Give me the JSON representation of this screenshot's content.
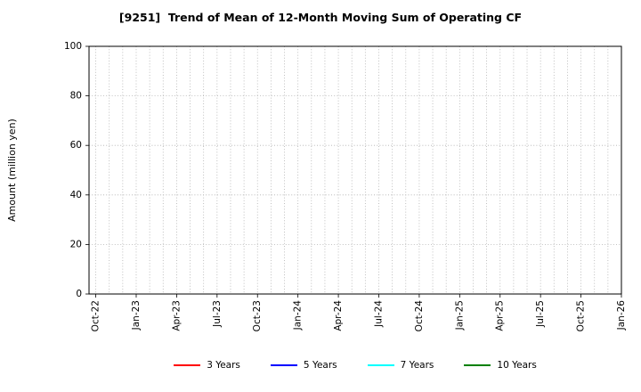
{
  "title": "[9251]  Trend of Mean of 12-Month Moving Sum of Operating CF",
  "chart_data": {
    "type": "line",
    "title": "[9251]  Trend of Mean of 12-Month Moving Sum of Operating CF",
    "xlabel": "",
    "ylabel": "Amount (million yen)",
    "ylim": [
      0,
      100
    ],
    "yticks": [
      0,
      20,
      40,
      60,
      80,
      100
    ],
    "x_tick_labels": [
      "Oct-22",
      "Jan-23",
      "Apr-23",
      "Jul-23",
      "Oct-23",
      "Jan-24",
      "Apr-24",
      "Jul-24",
      "Oct-24",
      "Jan-25",
      "Apr-25",
      "Jul-25",
      "Oct-25",
      "Jan-26"
    ],
    "grid": true,
    "grid_style": "dotted",
    "grid_color": "#b0b0b0",
    "legend_position": "bottom",
    "series": [
      {
        "name": "3 Years",
        "color": "#ff0000",
        "values": []
      },
      {
        "name": "5 Years",
        "color": "#0000ff",
        "values": []
      },
      {
        "name": "7 Years",
        "color": "#00ffff",
        "values": []
      },
      {
        "name": "10 Years",
        "color": "#008000",
        "values": []
      }
    ]
  }
}
